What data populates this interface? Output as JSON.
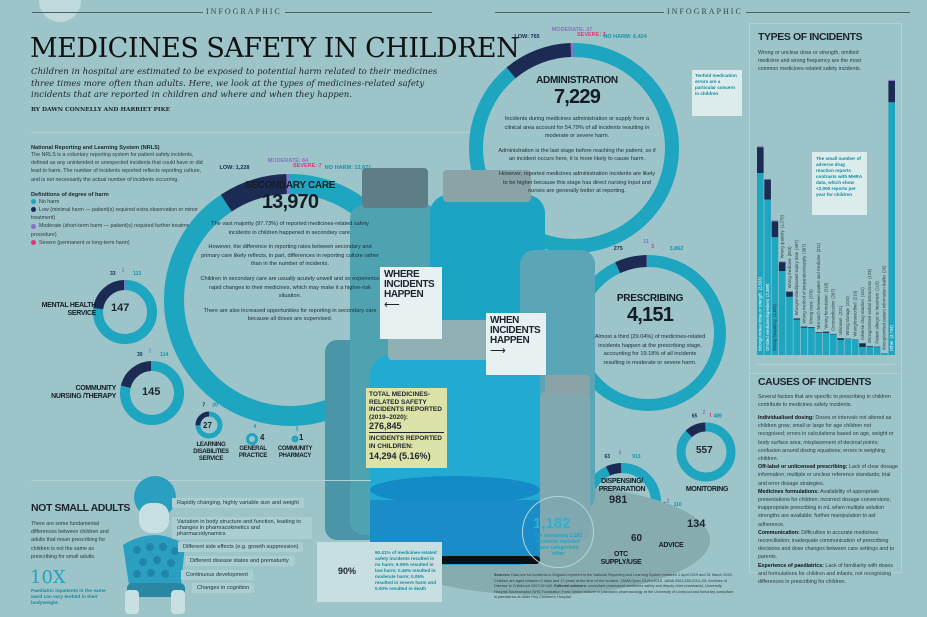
{
  "header": {
    "kicker_left": "INFOGRAPHIC",
    "kicker_right": "INFOGRAPHIC",
    "title": "MEDICINES SAFETY IN CHILDREN",
    "standfirst": "Children in hospital are estimated to be exposed to potential harm related to their medicines three times more often than adults. Here, we look at the types of medicines-related safety incidents that are reported in children and where and when they happen.",
    "byline": "BY DAWN CONNELLY AND HARRIET PIKE"
  },
  "nrls": {
    "heading": "National Reporting and Learning System (NRLS)",
    "body": "The NRLS is a voluntary reporting system for patient safety incidents, defined as any unintended or unexpected incidents that could have or did lead to harm. The number of incidents reported reflects reporting culture, and is not necessarily the actual number of incidents occurring.",
    "defs_heading": "Definitions of degree of harm",
    "defs": [
      {
        "label": "No harm",
        "color": "#1ea5c0"
      },
      {
        "label": "Low (minimal harm — patient(s) required extra observation or minor treatment)",
        "color": "#1b2b54"
      },
      {
        "label": "Moderate (short-term harm — patient(s) required further treatment, or procedure)",
        "color": "#8a6fc8"
      },
      {
        "label": "Severe (permanent or long-term harm)",
        "color": "#e0357a"
      }
    ]
  },
  "colors": {
    "no_harm": "#1ea5c0",
    "low": "#1b2b54",
    "moderate": "#8a6fc8",
    "severe": "#e0357a",
    "background": "#9cc4c9"
  },
  "where": {
    "label": "WHERE INCIDENTS HAPPEN",
    "secondary_care": {
      "title": "SECONDARY CARE",
      "total": "13,970",
      "labels": {
        "no_harm": "NO HARM: 12,671",
        "low": "LOW: 1,228",
        "moderate": "MODERATE: 64",
        "severe": "SEVERE: 7"
      },
      "values": {
        "no_harm": 12671,
        "low": 1228,
        "moderate": 64,
        "severe": 7
      },
      "bullets": [
        "The vast majority (97.73%) of reported medicines-related safety incidents in children happened in secondary care.",
        "However, the difference in reporting rates between secondary and primary care likely reflects, in part, differences in reporting culture rather than in the number of incidents.",
        "Children in secondary care are usually acutely unwell and so experience rapid changes to their medicines, which may make it a higher-risk situation.",
        "There are also increased opportunities for reporting in secondary care because all doses are supervised."
      ]
    },
    "mental_health": {
      "title": "MENTAL HEALTH SERVICE",
      "total": "147",
      "values": {
        "no_harm": 113,
        "low": 33,
        "moderate": 1,
        "severe": 0
      },
      "labels": {
        "low": "33",
        "moderate": "1",
        "no_harm": "113"
      }
    },
    "community_nursing": {
      "title": "COMMUNITY NURSING /THERAPY",
      "total": "145",
      "values": {
        "no_harm": 114,
        "low": 30,
        "moderate": 1,
        "severe": 0
      },
      "labels": {
        "low": "30",
        "moderate": "1",
        "no_harm": "114"
      }
    },
    "learning_disabilities": {
      "title": "LEARNING DISABILITIES SERVICE",
      "total": "27",
      "values": {
        "no_harm": 20,
        "low": 7,
        "moderate": 0,
        "severe": 0
      },
      "labels": {
        "low": "7",
        "no_harm": "20"
      }
    },
    "general_practice": {
      "title": "GENERAL PRACTICE",
      "total": "4",
      "values": {
        "no_harm": 4,
        "low": 0,
        "moderate": 0,
        "severe": 0
      },
      "labels": {
        "no_harm": "4"
      }
    },
    "community_pharmacy": {
      "title": "COMMUNITY PHARMACY",
      "total": "1",
      "values": {
        "no_harm": 1,
        "low": 0,
        "moderate": 0,
        "severe": 0
      },
      "labels": {
        "no_harm": "1"
      }
    }
  },
  "totals": {
    "total_label": "TOTAL MEDICINES-RELATED SAFETY INCIDENTS REPORTED (2019–2020):",
    "total_value": "276,845",
    "children_label": "INCIDENTS REPORTED IN CHILDREN:",
    "children_value": "14,294",
    "children_pct": "(5.16%)"
  },
  "when": {
    "label": "WHEN INCIDENTS HAPPEN",
    "administration": {
      "title": "ADMINISTRATION",
      "total": "7,229",
      "labels": {
        "no_harm": "NO HARM: 6,424",
        "low": "LOW: 765",
        "moderate": "MODERATE: 37",
        "severe": "SEVERE: 3"
      },
      "values": {
        "no_harm": 6424,
        "low": 765,
        "moderate": 37,
        "severe": 3
      },
      "bullets": [
        "Incidents during medicines administration or supply from a clinical area account for 54.79% of all incidents resulting in moderate or severe harm.",
        "Administration is the last stage before reaching the patient, so if an incident occurs here, it is more likely to cause harm.",
        "However, reported medicines administration incidents are likely to be higher because this stage has direct nursing input and nurses are generally better at reporting."
      ]
    },
    "prescribing": {
      "title": "PRESCRIBING",
      "total": "4,151",
      "labels": {
        "no_harm": "3,862",
        "low": "275",
        "moderate": "11",
        "severe": "3"
      },
      "values": {
        "no_harm": 3862,
        "low": 275,
        "moderate": 11,
        "severe": 3
      },
      "bullets": [
        "Almost a third (29.04%) of medicines-related incidents happen at the prescribing stage, accounting for 19.18% of all incidents resulting in moderate or severe harm."
      ]
    },
    "dispensing": {
      "title": "DISPENSING/ PREPARATION",
      "total": "981",
      "values": {
        "no_harm": 913,
        "low": 63,
        "moderate": 5,
        "severe": 0
      },
      "labels": {
        "low": "63",
        "moderate": "5",
        "no_harm": "913"
      }
    },
    "monitoring": {
      "title": "MONITORING",
      "total": "557",
      "values": {
        "no_harm": 489,
        "low": 65,
        "moderate": 2,
        "severe": 1
      },
      "labels": {
        "low": "65",
        "moderate": "2",
        "severe": "1",
        "no_harm": "489"
      }
    },
    "advice": {
      "title": "ADVICE",
      "total": "134",
      "values": {
        "no_harm": 110,
        "low": 22,
        "moderate": 2,
        "severe": 0
      },
      "labels": {
        "low": "22",
        "moderate": "2",
        "no_harm": "110"
      }
    },
    "otc": {
      "title": "OTC SUPPLY/USE",
      "total": "60",
      "values": {
        "no_harm": 58,
        "low": 2,
        "moderate": 0,
        "severe": 0
      },
      "labels": {
        "low": "2",
        "no_harm": "58"
      }
    },
    "other": {
      "value": "1,182",
      "caption": "The remaining 1,182 incidents reported were categorised 'other'"
    }
  },
  "outcome": {
    "percent": "90%",
    "percent_value": 90.41,
    "text": "90.41% of medicines-related safety incidents resulted in no harm; 9.08% resulted in low harm; 0.46% resulted in moderate harm; 0.05% resulted in severe harm and 0.00% resulted in death"
  },
  "not_small_adults": {
    "heading": "NOT SMALL ADULTS",
    "body": "There are some fundamental differences between children and adults that mean prescribing for children is not the same as prescribing for small adults.",
    "big": "10X",
    "big_caption": "Paediatric inpatients in the same ward can vary tenfold in their bodyweight.",
    "tags": [
      "Rapidly changing, highly variable size and weight",
      "Variation in body structure and function, leading to changes in pharmacokinetics and pharmacodynamics",
      "Different side effects (e.g. growth suppression)",
      "Different disease states and prematurity",
      "Continuous development",
      "Changes in cognition"
    ]
  },
  "types": {
    "heading": "TYPES OF INCIDENTS",
    "intro": "Wrong or unclear dose or strength, omitted medicine and wrong frequency are the most common medicines-related safety incidents.",
    "callout1": "Tenfold medication errors are a particular concern in children",
    "callout2": "The small number of adverse drug reaction reports contrasts with MHRA data, which show <2,000 reports per year for children"
  },
  "chart_data": {
    "type": "bar",
    "title": "TYPES OF INCIDENTS",
    "stacked": true,
    "categories": [
      "Wrong/unclear dose or strength",
      "Omitted medicine/ingredient",
      "Wrong frequency",
      "Wrong quantity",
      "Wrong medicine",
      "Wrong/omitted/passed expiry date",
      "Wrong method of preparation/supply",
      "Wrong route",
      "Mismatch between patient and medicine",
      "Wrong formulation",
      "Contraindication",
      "Unknown",
      "Wrong storage",
      "Wrong/transcribed",
      "Adverse drug reaction",
      "Wrong/omitted verbal instructions",
      "Patient allergic to treatment",
      "Wrong/omitted patient information leaflet",
      "Other"
    ],
    "labels": [
      "(2,833)",
      "(2,389)",
      "(1,826)",
      "(1,270)",
      "(863)",
      "(497)",
      "(387)",
      "(378)",
      "(311)",
      "(318)",
      "(287)",
      "(231)",
      "(224)",
      "(210)",
      "(161)",
      "(123)",
      "(113)",
      "(26)",
      "(3,734)"
    ],
    "series": [
      {
        "name": "No harm",
        "values": [
          2470,
          2110,
          1600,
          1140,
          790,
          480,
          370,
          365,
          300,
          300,
          280,
          205,
          220,
          205,
          110,
          115,
          105,
          25,
          3430
        ]
      },
      {
        "name": "Low",
        "values": [
          350,
          270,
          215,
          120,
          70,
          16,
          16,
          12,
          10,
          17,
          6,
          24,
          4,
          5,
          49,
          8,
          8,
          1,
          290
        ]
      },
      {
        "name": "Moderate",
        "values": [
          13,
          9,
          11,
          10,
          3,
          1,
          1,
          1,
          1,
          1,
          1,
          2,
          0,
          0,
          2,
          0,
          0,
          0,
          14
        ]
      }
    ],
    "ylim": [
      0,
      3800
    ]
  },
  "causes": {
    "heading": "CAUSES OF INCIDENTS",
    "intro": "Several factors that are specific to prescribing in children contribute to medicines safety incidents.",
    "items": [
      {
        "term": "Individualised dosing:",
        "text": " Doses or intervals not altered as children grow; small or large for age children not recognised; errors in calculations based on age, weight or body surface area; misplacement of decimal points; confusion around dosing equations; errors in weighing children."
      },
      {
        "term": "Off-label or unlicensed prescribing:",
        "text": " Lack of clear dosage information; multiple or unclear reference standards; trial and error dosage strategies."
      },
      {
        "term": "Medicines formulations:",
        "text": " Availability of appropriate presentations for children; incorrect dosage conversions; inappropriate prescribing in mL when multiple solution strengths are available; further manipulation to aid adherence."
      },
      {
        "term": "Communication:",
        "text": " Difficulties in accurate medicines reconciliation; inadequate communication of prescribing decisions and dose changes between care settings and to parents."
      },
      {
        "term": "Experience of paediatrics:",
        "text": " Lack of familiarity with doses and formulations for children and infants; not recognising differences in prescribing for children."
      }
    ]
  },
  "sources": {
    "label": "Sources:",
    "text": " Data are for incidents in England reported to the National Reporting and Learning System between 1 April 2019 and 31 March 2020. Children are aged between 0 days and 17 years at the time of the incident. JAMA Open 2019;e2018. JAMA 2001;285:2114–20; Archives of Disease in Childhood 2007;92:440.",
    "advisers_label": " Editorial advisers:",
    "advisers": " consultant pharmacist medicines safety and deputy chief pharmacist, University Hospital Southampton NHS Foundation Trust; senior lecturer in paediatric pharmacology at the University of Liverpool and honorary consultant in paediatrics at Alder Hey Children's Hospital."
  }
}
